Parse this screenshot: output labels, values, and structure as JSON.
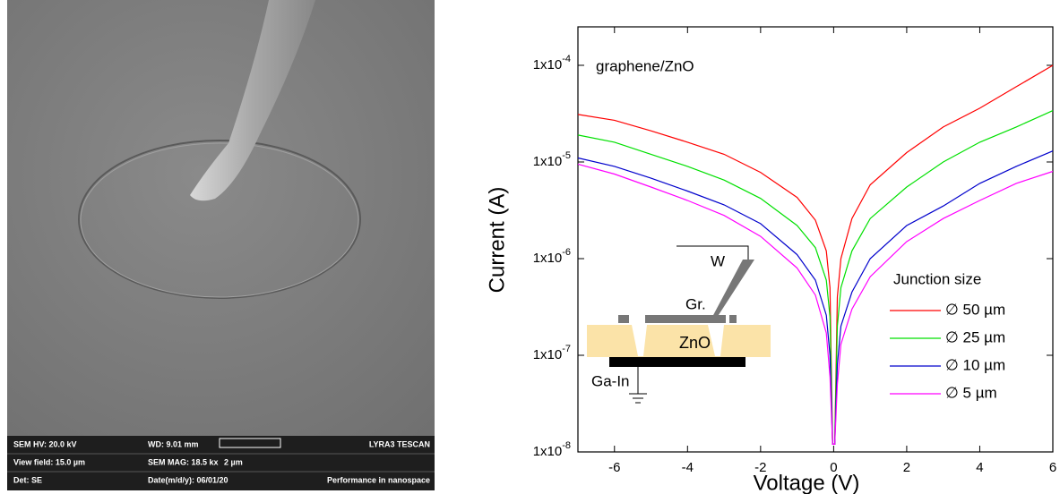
{
  "sem_image": {
    "info": [
      [
        "SEM HV: 20.0 kV",
        "WD: 9.01 mm",
        "LYRA3 TESCAN"
      ],
      [
        "View field: 15.0 µm",
        "SEM MAG: 18.5 kx",
        "2 µm"
      ],
      [
        "Det: SE",
        "Date(m/d/y): 06/01/20",
        "Performance in nanospace"
      ]
    ]
  },
  "chart_data": {
    "type": "line",
    "annotation": "graphene/ZnO",
    "x_label": "Voltage (V)",
    "y_label": "Current (A)",
    "legend_title": "Junction size",
    "log_y": true,
    "xlim": [
      -7,
      6
    ],
    "xticks": [
      -6,
      -4,
      -2,
      0,
      2,
      4,
      6
    ],
    "ylim": [
      1e-08,
      0.00025
    ],
    "yticks": [
      {
        "value": 1e-08,
        "label": "1x10",
        "exponent": "-8"
      },
      {
        "value": 1e-07,
        "label": "1x10",
        "exponent": "-7"
      },
      {
        "value": 1e-06,
        "label": "1x10",
        "exponent": "-6"
      },
      {
        "value": 1e-05,
        "label": "1x10",
        "exponent": "-5"
      },
      {
        "value": 0.0001,
        "label": "1x10",
        "exponent": "-4"
      }
    ],
    "x": [
      -7,
      -6,
      -5,
      -4,
      -3,
      -2,
      -1,
      -0.5,
      -0.2,
      -0.1,
      -0.03,
      0.03,
      0.1,
      0.2,
      0.5,
      1,
      2,
      3,
      4,
      5,
      6
    ],
    "series": [
      {
        "name": "∅ 50 µm",
        "color": "#ff0000",
        "values": [
          3.1e-05,
          2.7e-05,
          2.1e-05,
          1.6e-05,
          1.2e-05,
          7.8e-06,
          4.3e-06,
          2.5e-06,
          1.2e-06,
          5e-07,
          1.2e-08,
          1.2e-08,
          4e-07,
          1e-06,
          2.6e-06,
          5.8e-06,
          1.25e-05,
          2.3e-05,
          3.6e-05,
          6e-05,
          0.0001
        ]
      },
      {
        "name": "∅ 25 µm",
        "color": "#00e000",
        "values": [
          1.9e-05,
          1.6e-05,
          1.2e-05,
          9e-06,
          6.5e-06,
          4.2e-06,
          2.2e-06,
          1.3e-06,
          6e-07,
          2.5e-07,
          1.2e-08,
          1.2e-08,
          2e-07,
          5e-07,
          1.2e-06,
          2.6e-06,
          5.5e-06,
          1e-05,
          1.6e-05,
          2.3e-05,
          3.4e-05
        ]
      },
      {
        "name": "∅ 10 µm",
        "color": "#0000cc",
        "values": [
          1.1e-05,
          9e-06,
          6.8e-06,
          5e-06,
          3.6e-06,
          2.3e-06,
          1.1e-06,
          6e-07,
          2.6e-07,
          1e-07,
          1.2e-08,
          1.2e-08,
          8e-08,
          2e-07,
          4.5e-07,
          1e-06,
          2.2e-06,
          3.5e-06,
          6e-06,
          9e-06,
          1.3e-05
        ]
      },
      {
        "name": "∅ 5 µm",
        "color": "#ff00ff",
        "values": [
          9.5e-06,
          7.5e-06,
          5.5e-06,
          4e-06,
          2.8e-06,
          1.7e-06,
          8e-07,
          4.2e-07,
          1.7e-07,
          6e-08,
          1.2e-08,
          1.2e-08,
          5e-08,
          1.3e-07,
          3e-07,
          6.5e-07,
          1.5e-06,
          2.6e-06,
          4e-06,
          6e-06,
          8e-06
        ]
      }
    ],
    "inset_labels": [
      "W",
      "Gr.",
      "ZnO",
      "Ga-In"
    ]
  }
}
